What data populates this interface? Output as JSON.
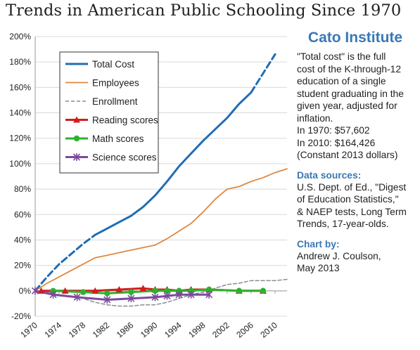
{
  "header": {
    "title": "Trends in American Public Schooling Since 1970"
  },
  "sidebar": {
    "brand": "Cato Institute",
    "description_lines": [
      "\"Total cost\" is the full",
      "cost of the K-through-12",
      "education of a single",
      "student graduating in the",
      "given year, adjusted for",
      "inflation.",
      "In 1970:    $57,602",
      "In 2010:  $164,426",
      "(Constant 2013 dollars)"
    ],
    "sources_heading": "Data sources:",
    "sources_lines": [
      "U.S. Dept. of Ed., \"Digest",
      "of Education Statistics,\"",
      "& NAEP tests, Long Term",
      "Trends, 17-year-olds."
    ],
    "chart_by_heading": "Chart by:",
    "chart_by_lines": [
      "Andrew J. Coulson,",
      "May 2013"
    ]
  },
  "colors": {
    "total_cost": "#1f6db5",
    "employees": "#e0883f",
    "enrollment": "#8c8c96",
    "reading": "#d41c1c",
    "math": "#2bb32b",
    "science": "#7d4a9c",
    "grid": "#d9d9d9",
    "brand": "#3a78b4"
  },
  "chart_data": {
    "type": "line",
    "title": "Trends in American Public Schooling Since 1970",
    "xlabel": "",
    "ylabel": "",
    "xlim": [
      1970,
      2012
    ],
    "ylim": [
      -20,
      200
    ],
    "x_ticks": [
      1970,
      1974,
      1978,
      1982,
      1986,
      1990,
      1994,
      1998,
      2002,
      2006,
      2010
    ],
    "y_ticks": [
      -20,
      0,
      20,
      40,
      60,
      80,
      100,
      120,
      140,
      160,
      180,
      200
    ],
    "y_tick_labels": [
      "-20%",
      "0%",
      "20%",
      "40%",
      "60%",
      "80%",
      "100%",
      "120%",
      "140%",
      "160%",
      "180%",
      "200%"
    ],
    "grid": "horizontal",
    "legend_position": "top-left",
    "series": [
      {
        "name": "Total Cost",
        "color_key": "total_cost",
        "segments": [
          {
            "style": "dashed",
            "points": [
              [
                1970,
                0
              ],
              [
                1972,
                11
              ],
              [
                1974,
                21
              ],
              [
                1976,
                29
              ],
              [
                1978,
                37
              ],
              [
                1980,
                44
              ]
            ]
          },
          {
            "style": "solid",
            "points": [
              [
                1980,
                44
              ],
              [
                1982,
                49
              ],
              [
                1984,
                54
              ],
              [
                1986,
                59
              ],
              [
                1988,
                66
              ],
              [
                1990,
                75
              ],
              [
                1992,
                86
              ],
              [
                1994,
                98
              ],
              [
                1996,
                108
              ],
              [
                1998,
                118
              ],
              [
                2000,
                127
              ],
              [
                2002,
                136
              ],
              [
                2004,
                147
              ],
              [
                2006,
                156
              ]
            ]
          },
          {
            "style": "dashed",
            "points": [
              [
                2006,
                156
              ],
              [
                2008,
                171
              ],
              [
                2010,
                186
              ]
            ]
          }
        ]
      },
      {
        "name": "Employees",
        "color_key": "employees",
        "segments": [
          {
            "style": "solid",
            "points": [
              [
                1970,
                0
              ],
              [
                1972,
                6
              ],
              [
                1974,
                11
              ],
              [
                1976,
                16
              ],
              [
                1978,
                21
              ],
              [
                1980,
                26
              ],
              [
                1982,
                28
              ],
              [
                1984,
                30
              ],
              [
                1986,
                32
              ],
              [
                1988,
                34
              ],
              [
                1990,
                36
              ],
              [
                1992,
                41
              ],
              [
                1994,
                47
              ],
              [
                1996,
                53
              ],
              [
                1998,
                62
              ],
              [
                2000,
                72
              ],
              [
                2002,
                80
              ],
              [
                2004,
                82
              ],
              [
                2006,
                86
              ],
              [
                2008,
                89
              ],
              [
                2010,
                93
              ],
              [
                2012,
                96
              ]
            ]
          }
        ]
      },
      {
        "name": "Enrollment",
        "color_key": "enrollment",
        "segments": [
          {
            "style": "dashed",
            "points": [
              [
                1970,
                0
              ],
              [
                1972,
                -1
              ],
              [
                1974,
                -3
              ],
              [
                1976,
                -4
              ],
              [
                1978,
                -6
              ],
              [
                1980,
                -9
              ],
              [
                1982,
                -11
              ],
              [
                1984,
                -12
              ],
              [
                1986,
                -12
              ],
              [
                1988,
                -11
              ],
              [
                1990,
                -11
              ],
              [
                1992,
                -9
              ],
              [
                1994,
                -6
              ],
              [
                1996,
                -3
              ],
              [
                1998,
                -1
              ],
              [
                2000,
                2
              ],
              [
                2002,
                5
              ],
              [
                2004,
                6
              ],
              [
                2006,
                8
              ],
              [
                2008,
                8
              ],
              [
                2010,
                8
              ],
              [
                2012,
                9
              ]
            ]
          }
        ]
      },
      {
        "name": "Reading scores",
        "color_key": "reading",
        "marker": "triangle",
        "segments": [
          {
            "style": "solid",
            "points": [
              [
                1971,
                0
              ],
              [
                1975,
                0
              ],
              [
                1980,
                0
              ],
              [
                1984,
                1
              ],
              [
                1988,
                2
              ],
              [
                1990,
                1
              ],
              [
                1992,
                1
              ],
              [
                1994,
                0
              ],
              [
                1996,
                1
              ],
              [
                1999,
                1
              ],
              [
                2004,
                0
              ],
              [
                2008,
                0
              ]
            ]
          }
        ]
      },
      {
        "name": "Math scores",
        "color_key": "math",
        "marker": "circle",
        "segments": [
          {
            "style": "solid",
            "points": [
              [
                1973,
                0
              ],
              [
                1978,
                -1
              ],
              [
                1982,
                -2
              ],
              [
                1986,
                -1
              ],
              [
                1990,
                0
              ],
              [
                1992,
                0
              ],
              [
                1994,
                0
              ],
              [
                1996,
                0
              ],
              [
                1999,
                1
              ],
              [
                2004,
                0
              ],
              [
                2008,
                0
              ]
            ]
          }
        ]
      },
      {
        "name": "Science scores",
        "color_key": "science",
        "marker": "asterisk",
        "segments": [
          {
            "style": "solid",
            "points": [
              [
                1970,
                0
              ],
              [
                1973,
                -3
              ],
              [
                1977,
                -5
              ],
              [
                1982,
                -7
              ],
              [
                1986,
                -6
              ],
              [
                1990,
                -5
              ],
              [
                1992,
                -4
              ],
              [
                1994,
                -3
              ],
              [
                1996,
                -3
              ],
              [
                1999,
                -3
              ]
            ]
          }
        ]
      }
    ]
  }
}
